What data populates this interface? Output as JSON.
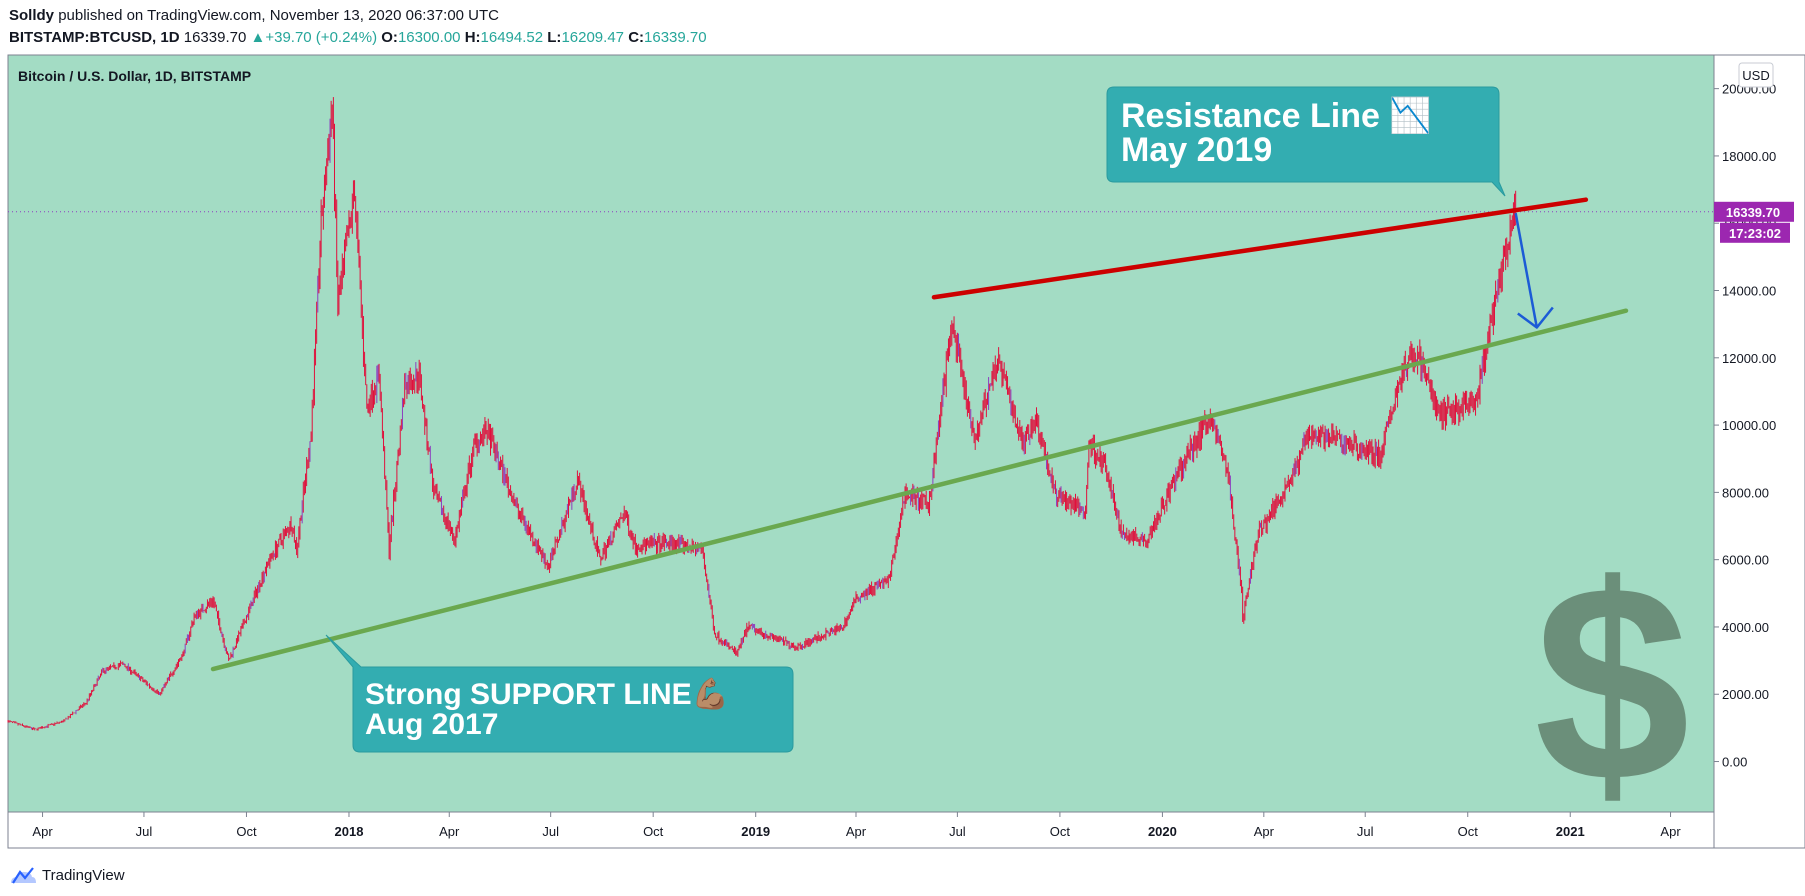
{
  "header": {
    "author": "Solldy",
    "published_text": "published on TradingView.com, November 13, 2020 06:37:00 UTC",
    "symbol": "BITSTAMP:BTCUSD, 1D",
    "last": "16339.70",
    "change": "+39.70 (+0.24%)",
    "open_label": "O:",
    "open": "16300.00",
    "high_label": "H:",
    "high": "16494.52",
    "low_label": "L:",
    "low": "16209.47",
    "close_label": "C:",
    "close": "16339.70"
  },
  "colors": {
    "chart_bg": "#a3dcc4",
    "candle": "#e0103c",
    "candle_alt": "#8c3fbf",
    "resistance": "#cc0000",
    "support": "#6aa84f",
    "callout": "#33adb1",
    "arrow": "#1c5bd6",
    "price_badge": "#9c27b0",
    "dollar": "#6b8f7a"
  },
  "brand": "TradingView",
  "chart_data": {
    "type": "candlestick",
    "title": "Bitcoin / U.S. Dollar, 1D, BITSTAMP",
    "currency": "USD",
    "y_axis_side": "right",
    "ylim": [
      -1500,
      21000
    ],
    "yticks": [
      0,
      2000,
      4000,
      6000,
      8000,
      10000,
      12000,
      14000,
      16000,
      18000,
      20000
    ],
    "ytick_labels": [
      "0.00",
      "2000.00",
      "4000.00",
      "6000.00",
      "8000.00",
      "10000.00",
      "12000.00",
      "14000.00",
      "16000.00",
      "18000.00",
      "20000.00"
    ],
    "xlim": [
      "2017-03-01",
      "2021-05-10"
    ],
    "xticks": [
      {
        "date": "2017-04-01",
        "label": "Apr",
        "bold": false
      },
      {
        "date": "2017-07-01",
        "label": "Jul",
        "bold": false
      },
      {
        "date": "2017-10-01",
        "label": "Oct",
        "bold": false
      },
      {
        "date": "2018-01-01",
        "label": "2018",
        "bold": true
      },
      {
        "date": "2018-04-01",
        "label": "Apr",
        "bold": false
      },
      {
        "date": "2018-07-01",
        "label": "Jul",
        "bold": false
      },
      {
        "date": "2018-10-01",
        "label": "Oct",
        "bold": false
      },
      {
        "date": "2019-01-01",
        "label": "2019",
        "bold": true
      },
      {
        "date": "2019-04-01",
        "label": "Apr",
        "bold": false
      },
      {
        "date": "2019-07-01",
        "label": "Jul",
        "bold": false
      },
      {
        "date": "2019-10-01",
        "label": "Oct",
        "bold": false
      },
      {
        "date": "2020-01-01",
        "label": "2020",
        "bold": true
      },
      {
        "date": "2020-04-01",
        "label": "Apr",
        "bold": false
      },
      {
        "date": "2020-07-01",
        "label": "Jul",
        "bold": false
      },
      {
        "date": "2020-10-01",
        "label": "Oct",
        "bold": false
      },
      {
        "date": "2021-01-01",
        "label": "2021",
        "bold": true
      },
      {
        "date": "2021-04-01",
        "label": "Apr",
        "bold": false
      }
    ],
    "price_path": [
      [
        "2017-03-01",
        1200
      ],
      [
        "2017-03-25",
        950
      ],
      [
        "2017-04-20",
        1200
      ],
      [
        "2017-05-10",
        1750
      ],
      [
        "2017-05-25",
        2700
      ],
      [
        "2017-06-12",
        2900
      ],
      [
        "2017-07-15",
        2000
      ],
      [
        "2017-08-05",
        3200
      ],
      [
        "2017-08-15",
        4300
      ],
      [
        "2017-09-01",
        4800
      ],
      [
        "2017-09-15",
        3000
      ],
      [
        "2017-10-01",
        4300
      ],
      [
        "2017-10-20",
        5900
      ],
      [
        "2017-11-10",
        7100
      ],
      [
        "2017-11-15",
        6300
      ],
      [
        "2017-11-28",
        9800
      ],
      [
        "2017-12-07",
        16000
      ],
      [
        "2017-12-17",
        19500
      ],
      [
        "2017-12-22",
        13500
      ],
      [
        "2018-01-06",
        17000
      ],
      [
        "2018-01-17",
        10500
      ],
      [
        "2018-01-28",
        11500
      ],
      [
        "2018-02-06",
        6300
      ],
      [
        "2018-02-20",
        11200
      ],
      [
        "2018-03-05",
        11500
      ],
      [
        "2018-03-18",
        8000
      ],
      [
        "2018-04-06",
        6600
      ],
      [
        "2018-04-24",
        9500
      ],
      [
        "2018-05-05",
        9800
      ],
      [
        "2018-06-01",
        7500
      ],
      [
        "2018-06-29",
        5800
      ],
      [
        "2018-07-25",
        8400
      ],
      [
        "2018-08-14",
        6000
      ],
      [
        "2018-09-05",
        7400
      ],
      [
        "2018-09-15",
        6400
      ],
      [
        "2018-10-15",
        6500
      ],
      [
        "2018-11-14",
        6300
      ],
      [
        "2018-11-25",
        3800
      ],
      [
        "2018-12-15",
        3200
      ],
      [
        "2018-12-25",
        4000
      ],
      [
        "2019-02-07",
        3400
      ],
      [
        "2019-03-20",
        4000
      ],
      [
        "2019-04-02",
        4900
      ],
      [
        "2019-05-01",
        5400
      ],
      [
        "2019-05-15",
        8000
      ],
      [
        "2019-06-05",
        7600
      ],
      [
        "2019-06-26",
        13000
      ],
      [
        "2019-07-16",
        9500
      ],
      [
        "2019-08-06",
        12000
      ],
      [
        "2019-08-28",
        9500
      ],
      [
        "2019-09-10",
        10200
      ],
      [
        "2019-09-26",
        8000
      ],
      [
        "2019-10-24",
        7400
      ],
      [
        "2019-10-27",
        9500
      ],
      [
        "2019-11-10",
        8800
      ],
      [
        "2019-11-25",
        6800
      ],
      [
        "2019-12-18",
        6600
      ],
      [
        "2020-01-14",
        8500
      ],
      [
        "2020-02-13",
        10300
      ],
      [
        "2020-02-28",
        8700
      ],
      [
        "2020-03-12",
        5100
      ],
      [
        "2020-03-13",
        4200
      ],
      [
        "2020-03-26",
        6700
      ],
      [
        "2020-04-30",
        8700
      ],
      [
        "2020-05-10",
        9800
      ],
      [
        "2020-06-01",
        9600
      ],
      [
        "2020-07-15",
        9100
      ],
      [
        "2020-08-02",
        11500
      ],
      [
        "2020-08-17",
        12200
      ],
      [
        "2020-09-05",
        10300
      ],
      [
        "2020-09-22",
        10500
      ],
      [
        "2020-10-08",
        10600
      ],
      [
        "2020-10-21",
        12800
      ],
      [
        "2020-11-06",
        15500
      ],
      [
        "2020-11-13",
        16339.7
      ]
    ],
    "last_price": "16339.70",
    "countdown": "17:23:02",
    "resistance_line": {
      "start": [
        "2019-06-10",
        13800
      ],
      "end": [
        "2021-01-15",
        16700
      ]
    },
    "support_line": {
      "start": [
        "2017-09-01",
        2750
      ],
      "end": [
        "2021-02-20",
        13400
      ]
    },
    "arrow": {
      "start": [
        "2020-11-13",
        16300
      ],
      "end": [
        "2020-12-02",
        12900
      ]
    },
    "annotations": [
      {
        "id": "resistance",
        "lines": [
          "Resistance Line 📉",
          "May 2019"
        ]
      },
      {
        "id": "support",
        "lines": [
          "Strong SUPPORT LINE💪🏽",
          "Aug 2017"
        ]
      }
    ]
  }
}
